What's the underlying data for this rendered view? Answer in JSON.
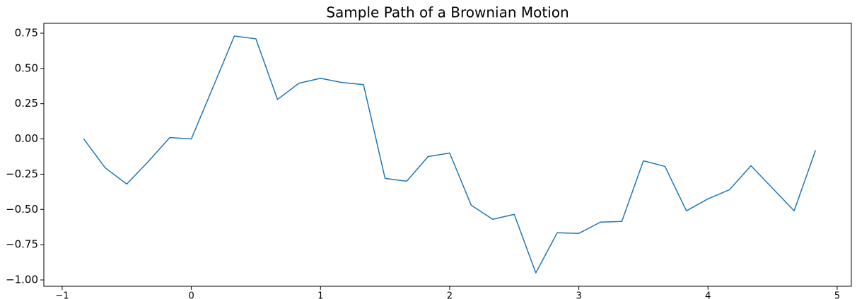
{
  "chart_data": {
    "type": "line",
    "title": "Sample Path of a Brownian Motion",
    "x": [
      -0.833,
      -0.667,
      -0.5,
      -0.333,
      -0.167,
      0,
      0.167,
      0.333,
      0.5,
      0.667,
      0.833,
      1,
      1.167,
      1.333,
      1.5,
      1.667,
      1.833,
      2,
      2.167,
      2.333,
      2.5,
      2.667,
      2.833,
      3,
      3.167,
      3.333,
      3.5,
      3.667,
      3.833,
      4,
      4.167,
      4.333,
      4.5,
      4.667,
      4.833
    ],
    "series": [
      {
        "color": "#1f77b4",
        "values": [
          0.0,
          -0.205,
          -0.32,
          -0.16,
          0.01,
          0.0,
          0.365,
          0.73,
          0.71,
          0.28,
          0.395,
          0.43,
          0.4,
          0.385,
          -0.28,
          -0.3,
          -0.125,
          -0.1,
          -0.47,
          -0.57,
          -0.535,
          -0.95,
          -0.665,
          -0.67,
          -0.59,
          -0.585,
          -0.155,
          -0.195,
          -0.51,
          -0.425,
          -0.36,
          -0.19,
          -0.35,
          -0.51,
          -0.08
        ]
      }
    ],
    "xlim": [
      -1.142,
      5.11
    ],
    "ylim": [
      -1.045,
      0.82
    ],
    "xticks": [
      {
        "value": -1,
        "label": "−1"
      },
      0,
      1,
      2,
      3,
      4,
      5
    ],
    "yticks": [
      {
        "value": -1,
        "label": "−1.00"
      },
      {
        "value": -0.75,
        "label": "−0.75"
      },
      {
        "value": -0.5,
        "label": "−0.50"
      },
      {
        "value": -0.25,
        "label": "−0.25"
      },
      {
        "value": 0,
        "label": "0.00"
      },
      0.25,
      {
        "value": 0.5,
        "label": "0.50"
      },
      0.75
    ],
    "grid": false
  }
}
